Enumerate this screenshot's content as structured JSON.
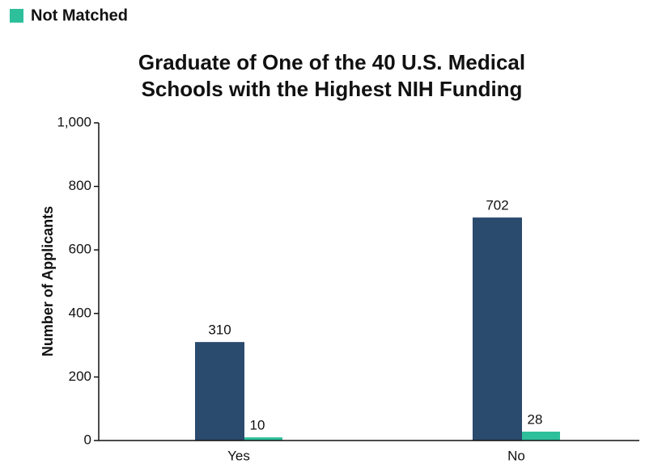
{
  "chart_data": {
    "type": "bar",
    "title": [
      "Graduate of One of the 40 U.S. Medical",
      "Schools with the Highest NIH Funding"
    ],
    "y_label": "Number of Applicants",
    "categories": [
      "Yes",
      "No"
    ],
    "series": [
      {
        "color": "#2a4a6e",
        "values": [
          310,
          702
        ]
      },
      {
        "name": "Not Matched",
        "color": "#2ebf9b",
        "values": [
          10,
          28
        ]
      }
    ],
    "ylim": [
      0,
      1000
    ],
    "yticks": [
      0,
      200,
      400,
      600,
      800,
      {
        "value": 1000,
        "label": "1,000"
      }
    ],
    "legend": "top-left"
  }
}
